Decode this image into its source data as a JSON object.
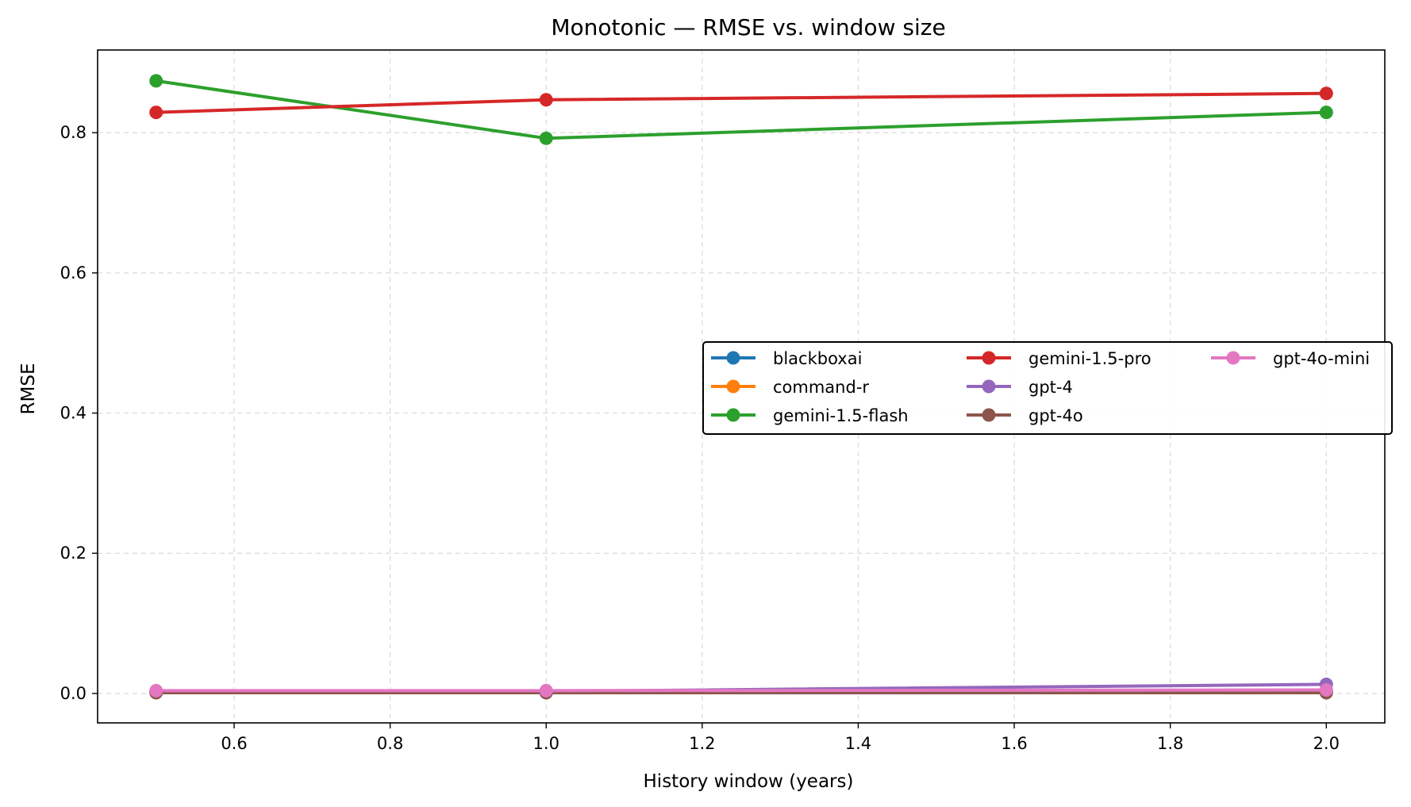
{
  "chart_data": {
    "type": "line",
    "title": "Monotonic — RMSE vs. window size",
    "xlabel": "History window (years)",
    "ylabel": "RMSE",
    "xlim": [
      0.425,
      2.075
    ],
    "ylim": [
      -0.042,
      0.918
    ],
    "xticks": [
      0.6,
      0.8,
      1.0,
      1.2,
      1.4,
      1.6,
      1.8,
      2.0
    ],
    "xtick_labels": [
      "0.6",
      "0.8",
      "1.0",
      "1.2",
      "1.4",
      "1.6",
      "1.8",
      "2.0"
    ],
    "yticks": [
      0.0,
      0.2,
      0.4,
      0.6,
      0.8
    ],
    "ytick_labels": [
      "0.0",
      "0.2",
      "0.4",
      "0.6",
      "0.8"
    ],
    "grid": true,
    "legend_placement": "center-right",
    "legend_columns": 3,
    "x": [
      0.5,
      1.0,
      2.0
    ],
    "series": [
      {
        "name": "blackboxai",
        "color": "#1f77b4",
        "values": [
          0.002,
          0.002,
          0.003
        ]
      },
      {
        "name": "command-r",
        "color": "#ff7f0e",
        "values": [
          0.002,
          0.002,
          0.003
        ]
      },
      {
        "name": "gemini-1.5-flash",
        "color": "#2ca02c",
        "values": [
          0.874,
          0.792,
          0.829
        ]
      },
      {
        "name": "gemini-1.5-pro",
        "color": "#d62728",
        "values": [
          0.829,
          0.847,
          0.856
        ]
      },
      {
        "name": "gpt-4",
        "color": "#9467bd",
        "values": [
          0.003,
          0.003,
          0.013
        ]
      },
      {
        "name": "gpt-4o",
        "color": "#8c564b",
        "values": [
          0.001,
          0.001,
          0.001
        ]
      },
      {
        "name": "gpt-4o-mini",
        "color": "#e377c2",
        "values": [
          0.004,
          0.004,
          0.005
        ]
      }
    ]
  }
}
